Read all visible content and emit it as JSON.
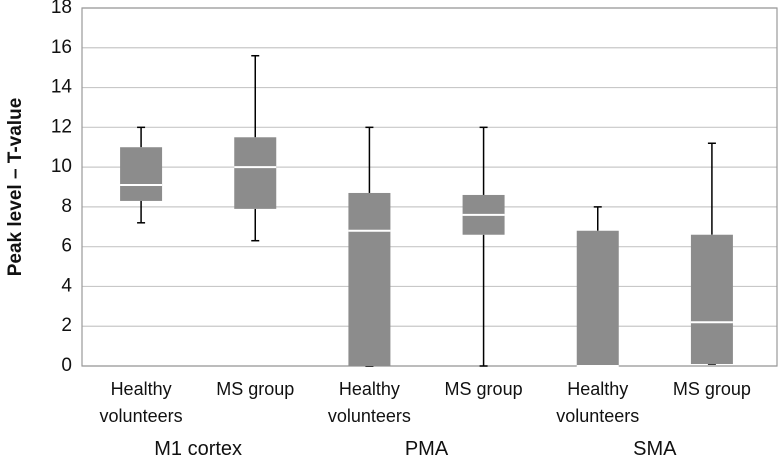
{
  "chart_data": {
    "type": "box",
    "y_label": "Peak level – T-value",
    "categories": [
      "Healthy volunteers",
      "MS group",
      "Healthy volunteers",
      "MS group",
      "Healthy volunteers",
      "MS group"
    ],
    "groups": [
      "M1 cortex",
      "PMA",
      "SMA"
    ],
    "boxes": [
      {
        "min": 7.2,
        "q1": 8.3,
        "median": 9.1,
        "q3": 11.0,
        "max": 12.0
      },
      {
        "min": 6.3,
        "q1": 7.9,
        "median": 10.0,
        "q3": 11.5,
        "max": 15.6
      },
      {
        "min": 0,
        "q1": 0,
        "median": 6.8,
        "q3": 8.7,
        "max": 12.0
      },
      {
        "min": 0,
        "q1": 6.6,
        "median": 7.6,
        "q3": 8.6,
        "max": 12.0
      },
      {
        "min": 0,
        "q1": 0,
        "median": 0,
        "q3": 6.8,
        "max": 8.0
      },
      {
        "min": 0.1,
        "q1": 0.1,
        "median": 2.2,
        "q3": 6.6,
        "max": 11.2
      }
    ],
    "color": "#8c8c8c",
    "median_color": "#ffffff",
    "ylim": [
      0,
      18
    ],
    "yticks": [
      0,
      2,
      4,
      6,
      8,
      10,
      12,
      14,
      16,
      18
    ],
    "grid": true
  }
}
